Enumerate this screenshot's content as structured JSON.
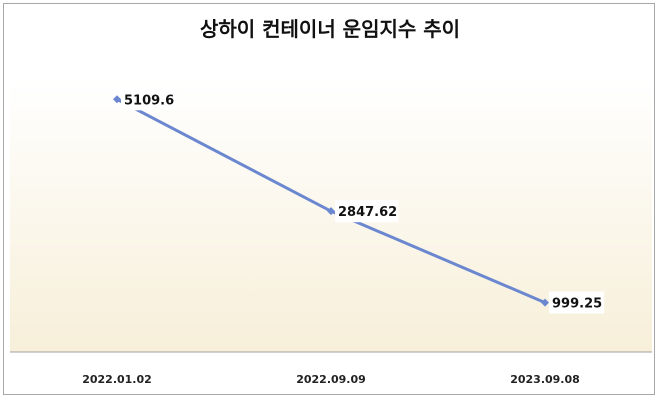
{
  "chart_data": {
    "type": "line",
    "title": "상하이 컨테이너 운임지수 추이",
    "categories": [
      "2022.01.02",
      "2022.09.09",
      "2023.09.08"
    ],
    "series": [
      {
        "values": [
          5109.6,
          2847.62,
          999.25
        ],
        "labels": [
          "5109.6",
          "2847.62",
          "999.25"
        ]
      }
    ],
    "ylim": [
      0,
      5500
    ],
    "grid": false,
    "y_axis_visible": false,
    "colors": {
      "line": "#6b87cf",
      "plot_bg_top": "#ffffff",
      "plot_bg_bottom": "#f7efd9",
      "axis": "#a0a0a0"
    }
  }
}
